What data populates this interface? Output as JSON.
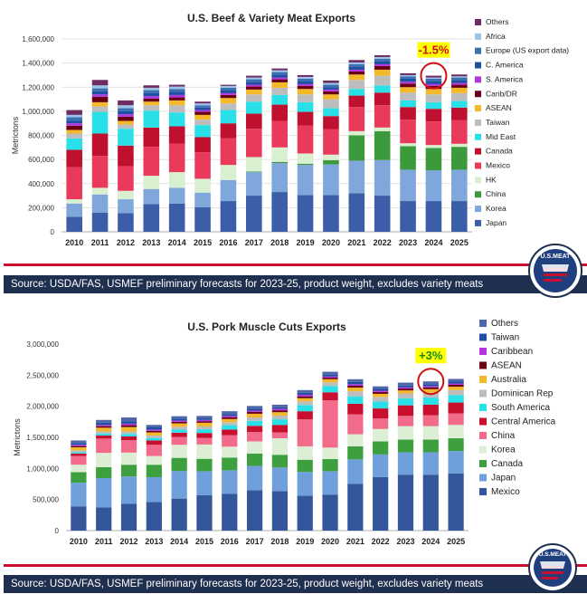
{
  "source_note": "Source: USDA/FAS, USMEF preliminary forecasts for 2023-25, product weight, excludes variety meats",
  "logo_text": "U.S.MEAT",
  "chart_data": [
    {
      "type": "bar",
      "stacked": true,
      "title": "U.S. Beef & Variety Meat Exports",
      "ylabel": "Metrictons",
      "ylim": [
        0,
        1600000
      ],
      "yticks": [
        0,
        200000,
        400000,
        600000,
        800000,
        1000000,
        1200000,
        1400000,
        1600000
      ],
      "ytick_labels": [
        "0",
        "200,000",
        "400,000",
        "600,000",
        "800,000",
        "1,000,000",
        "1,200,000",
        "1,400,000",
        "1,600,000"
      ],
      "grid": true,
      "legend": "right",
      "categories": [
        "2010",
        "2011",
        "2012",
        "2013",
        "2014",
        "2015",
        "2016",
        "2017",
        "2018",
        "2019",
        "2020",
        "2021",
        "2022",
        "2023",
        "2024",
        "2025"
      ],
      "annotation": {
        "text": "-1.5%",
        "category": "2024"
      },
      "series": [
        {
          "name": "Japan",
          "color": "#3c5ea8",
          "values": [
            125000,
            160000,
            155000,
            230000,
            235000,
            205000,
            255000,
            300000,
            330000,
            305000,
            305000,
            320000,
            300000,
            255000,
            255000,
            255000
          ]
        },
        {
          "name": "Korea",
          "color": "#7fa7dc",
          "values": [
            110000,
            150000,
            115000,
            125000,
            130000,
            120000,
            175000,
            195000,
            240000,
            250000,
            255000,
            270000,
            295000,
            260000,
            255000,
            260000
          ]
        },
        {
          "name": "China",
          "color": "#3c9a3c",
          "values": [
            0,
            0,
            0,
            0,
            0,
            0,
            0,
            5000,
            10000,
            10000,
            35000,
            210000,
            240000,
            195000,
            185000,
            190000
          ]
        },
        {
          "name": "HK",
          "color": "#d8efd0",
          "values": [
            35000,
            55000,
            70000,
            110000,
            130000,
            115000,
            125000,
            120000,
            120000,
            85000,
            45000,
            35000,
            30000,
            25000,
            25000,
            25000
          ]
        },
        {
          "name": "Mexico",
          "color": "#ea3a5c",
          "values": [
            265000,
            265000,
            205000,
            240000,
            235000,
            220000,
            220000,
            235000,
            220000,
            230000,
            210000,
            200000,
            185000,
            195000,
            195000,
            195000
          ]
        },
        {
          "name": "Canada",
          "color": "#c01030",
          "values": [
            145000,
            185000,
            170000,
            160000,
            145000,
            125000,
            125000,
            125000,
            135000,
            115000,
            110000,
            95000,
            105000,
            105000,
            105000,
            105000
          ]
        },
        {
          "name": "Mid East",
          "color": "#2ae0e8",
          "values": [
            95000,
            180000,
            140000,
            140000,
            115000,
            100000,
            110000,
            100000,
            80000,
            80000,
            65000,
            55000,
            60000,
            55000,
            55000,
            55000
          ]
        },
        {
          "name": "Taiwan",
          "color": "#bdbdbd",
          "values": [
            40000,
            45000,
            35000,
            45000,
            60000,
            45000,
            55000,
            60000,
            60000,
            65000,
            75000,
            75000,
            80000,
            65000,
            65000,
            65000
          ]
        },
        {
          "name": "ASEAN",
          "color": "#f4b82b",
          "values": [
            30000,
            35000,
            30000,
            30000,
            40000,
            40000,
            45000,
            40000,
            45000,
            45000,
            40000,
            45000,
            50000,
            45000,
            45000,
            45000
          ]
        },
        {
          "name": "Carib/DR",
          "color": "#6a0016",
          "values": [
            35000,
            45000,
            35000,
            25000,
            25000,
            25000,
            25000,
            25000,
            25000,
            25000,
            25000,
            25000,
            30000,
            30000,
            25000,
            25000
          ]
        },
        {
          "name": "S. America",
          "color": "#b435e0",
          "values": [
            20000,
            20000,
            20000,
            20000,
            20000,
            15000,
            15000,
            15000,
            15000,
            15000,
            15000,
            15000,
            15000,
            15000,
            15000,
            15000
          ]
        },
        {
          "name": "C. America",
          "color": "#1f4fa0",
          "values": [
            20000,
            25000,
            25000,
            25000,
            25000,
            20000,
            25000,
            25000,
            25000,
            25000,
            20000,
            25000,
            25000,
            25000,
            25000,
            25000
          ]
        },
        {
          "name": "Europe (US export data)",
          "color": "#3a6fb0",
          "values": [
            30000,
            25000,
            25000,
            25000,
            25000,
            20000,
            20000,
            20000,
            20000,
            20000,
            20000,
            20000,
            20000,
            20000,
            20000,
            20000
          ]
        },
        {
          "name": "Africa",
          "color": "#9dc3e6",
          "values": [
            20000,
            25000,
            25000,
            20000,
            20000,
            15000,
            15000,
            15000,
            15000,
            15000,
            15000,
            15000,
            15000,
            10000,
            10000,
            10000
          ]
        },
        {
          "name": "Others",
          "color": "#6e2c62",
          "values": [
            40000,
            45000,
            40000,
            20000,
            15000,
            15000,
            10000,
            15000,
            15000,
            15000,
            20000,
            20000,
            15000,
            15000,
            15000,
            15000
          ]
        }
      ]
    },
    {
      "type": "bar",
      "stacked": true,
      "title": "U.S. Pork Muscle Cuts Exports",
      "ylabel": "Metrictons",
      "ylim": [
        0,
        3000000
      ],
      "yticks": [
        0,
        500000,
        1000000,
        1500000,
        2000000,
        2500000,
        3000000
      ],
      "ytick_labels": [
        "0",
        "500,000",
        "1,000,000",
        "1,500,000",
        "2,000,000",
        "2,500,000",
        "3,000,000"
      ],
      "grid": false,
      "legend": "right",
      "categories": [
        "2010",
        "2011",
        "2012",
        "2013",
        "2014",
        "2015",
        "2016",
        "2017",
        "2018",
        "2019",
        "2020",
        "2021",
        "2022",
        "2023",
        "2024",
        "2025"
      ],
      "annotation": {
        "text": "+3%",
        "category": "2024"
      },
      "series": [
        {
          "name": "Mexico",
          "color": "#34569a",
          "values": [
            390000,
            375000,
            430000,
            460000,
            515000,
            570000,
            590000,
            650000,
            635000,
            560000,
            580000,
            750000,
            860000,
            900000,
            900000,
            920000
          ]
        },
        {
          "name": "Japan",
          "color": "#6fa0dc",
          "values": [
            380000,
            470000,
            440000,
            400000,
            445000,
            385000,
            380000,
            390000,
            380000,
            385000,
            375000,
            395000,
            365000,
            360000,
            360000,
            360000
          ]
        },
        {
          "name": "Canada",
          "color": "#3e9f3e",
          "values": [
            170000,
            175000,
            190000,
            200000,
            210000,
            200000,
            205000,
            200000,
            205000,
            195000,
            195000,
            210000,
            210000,
            205000,
            205000,
            205000
          ]
        },
        {
          "name": "Korea",
          "color": "#dcefd5",
          "values": [
            120000,
            230000,
            195000,
            140000,
            210000,
            230000,
            175000,
            195000,
            265000,
            215000,
            185000,
            195000,
            200000,
            215000,
            215000,
            215000
          ]
        },
        {
          "name": "China",
          "color": "#f26b8a",
          "values": [
            140000,
            230000,
            200000,
            180000,
            125000,
            105000,
            185000,
            150000,
            95000,
            435000,
            760000,
            320000,
            170000,
            165000,
            175000,
            185000
          ]
        },
        {
          "name": "Central America",
          "color": "#c8102e",
          "values": [
            40000,
            50000,
            60000,
            70000,
            70000,
            80000,
            90000,
            100000,
            120000,
            130000,
            130000,
            170000,
            160000,
            170000,
            170000,
            175000
          ]
        },
        {
          "name": "South America",
          "color": "#2ae0e8",
          "values": [
            20000,
            30000,
            40000,
            40000,
            50000,
            60000,
            70000,
            80000,
            90000,
            100000,
            100000,
            120000,
            110000,
            110000,
            115000,
            120000
          ]
        },
        {
          "name": "Dominican Rep",
          "color": "#bdbdbd",
          "values": [
            30000,
            35000,
            40000,
            40000,
            45000,
            45000,
            50000,
            55000,
            60000,
            60000,
            60000,
            80000,
            75000,
            80000,
            80000,
            80000
          ]
        },
        {
          "name": "Australia",
          "color": "#f4b82b",
          "values": [
            50000,
            60000,
            70000,
            50000,
            55000,
            60000,
            50000,
            60000,
            55000,
            50000,
            50000,
            60000,
            50000,
            50000,
            55000,
            55000
          ]
        },
        {
          "name": "ASEAN",
          "color": "#6a0016",
          "values": [
            20000,
            25000,
            30000,
            25000,
            25000,
            25000,
            30000,
            30000,
            30000,
            30000,
            25000,
            30000,
            30000,
            30000,
            30000,
            30000
          ]
        },
        {
          "name": "Caribbean",
          "color": "#b435e0",
          "values": [
            20000,
            20000,
            25000,
            20000,
            20000,
            20000,
            20000,
            20000,
            25000,
            25000,
            20000,
            25000,
            20000,
            20000,
            20000,
            20000
          ]
        },
        {
          "name": "Taiwan",
          "color": "#1f4fa0",
          "values": [
            30000,
            35000,
            40000,
            35000,
            30000,
            25000,
            30000,
            30000,
            25000,
            30000,
            30000,
            35000,
            30000,
            30000,
            30000,
            30000
          ]
        },
        {
          "name": "Others",
          "color": "#4d67a8",
          "values": [
            40000,
            45000,
            60000,
            40000,
            40000,
            40000,
            45000,
            45000,
            40000,
            45000,
            45000,
            45000,
            40000,
            45000,
            45000,
            45000
          ]
        }
      ]
    }
  ]
}
